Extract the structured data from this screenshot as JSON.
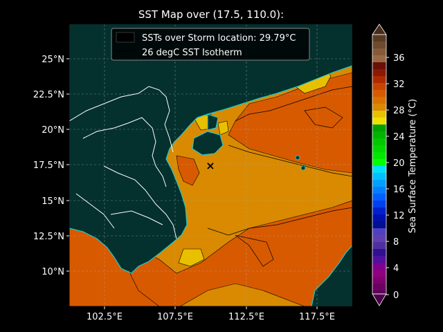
{
  "title": "SST Map over (17.5, 110.0):",
  "legend": {
    "items": [
      "SSTs over Storm location: 29.79°C",
      "26 degC SST Isotherm"
    ]
  },
  "map": {
    "lat_ticks": [
      "25°N",
      "22.5°N",
      "20°N",
      "17.5°N",
      "15°N",
      "12.5°N",
      "10°N"
    ],
    "lon_ticks": [
      "102.5°E",
      "107.5°E",
      "112.5°E",
      "117.5°E"
    ],
    "storm_location": {
      "lat": 17.5,
      "lon": 110.0,
      "marker": "×"
    }
  },
  "colorbar": {
    "label": "Sea Surface Temperature (°C)",
    "ticks": [
      "0",
      "4",
      "8",
      "12",
      "16",
      "20",
      "24",
      "28",
      "32",
      "36"
    ]
  },
  "colors": {
    "land": "#04302e",
    "coast": "#1ec8c8",
    "warm_sst": "#d98a00",
    "hot_sst": "#d85a00",
    "marker": "#000000"
  }
}
